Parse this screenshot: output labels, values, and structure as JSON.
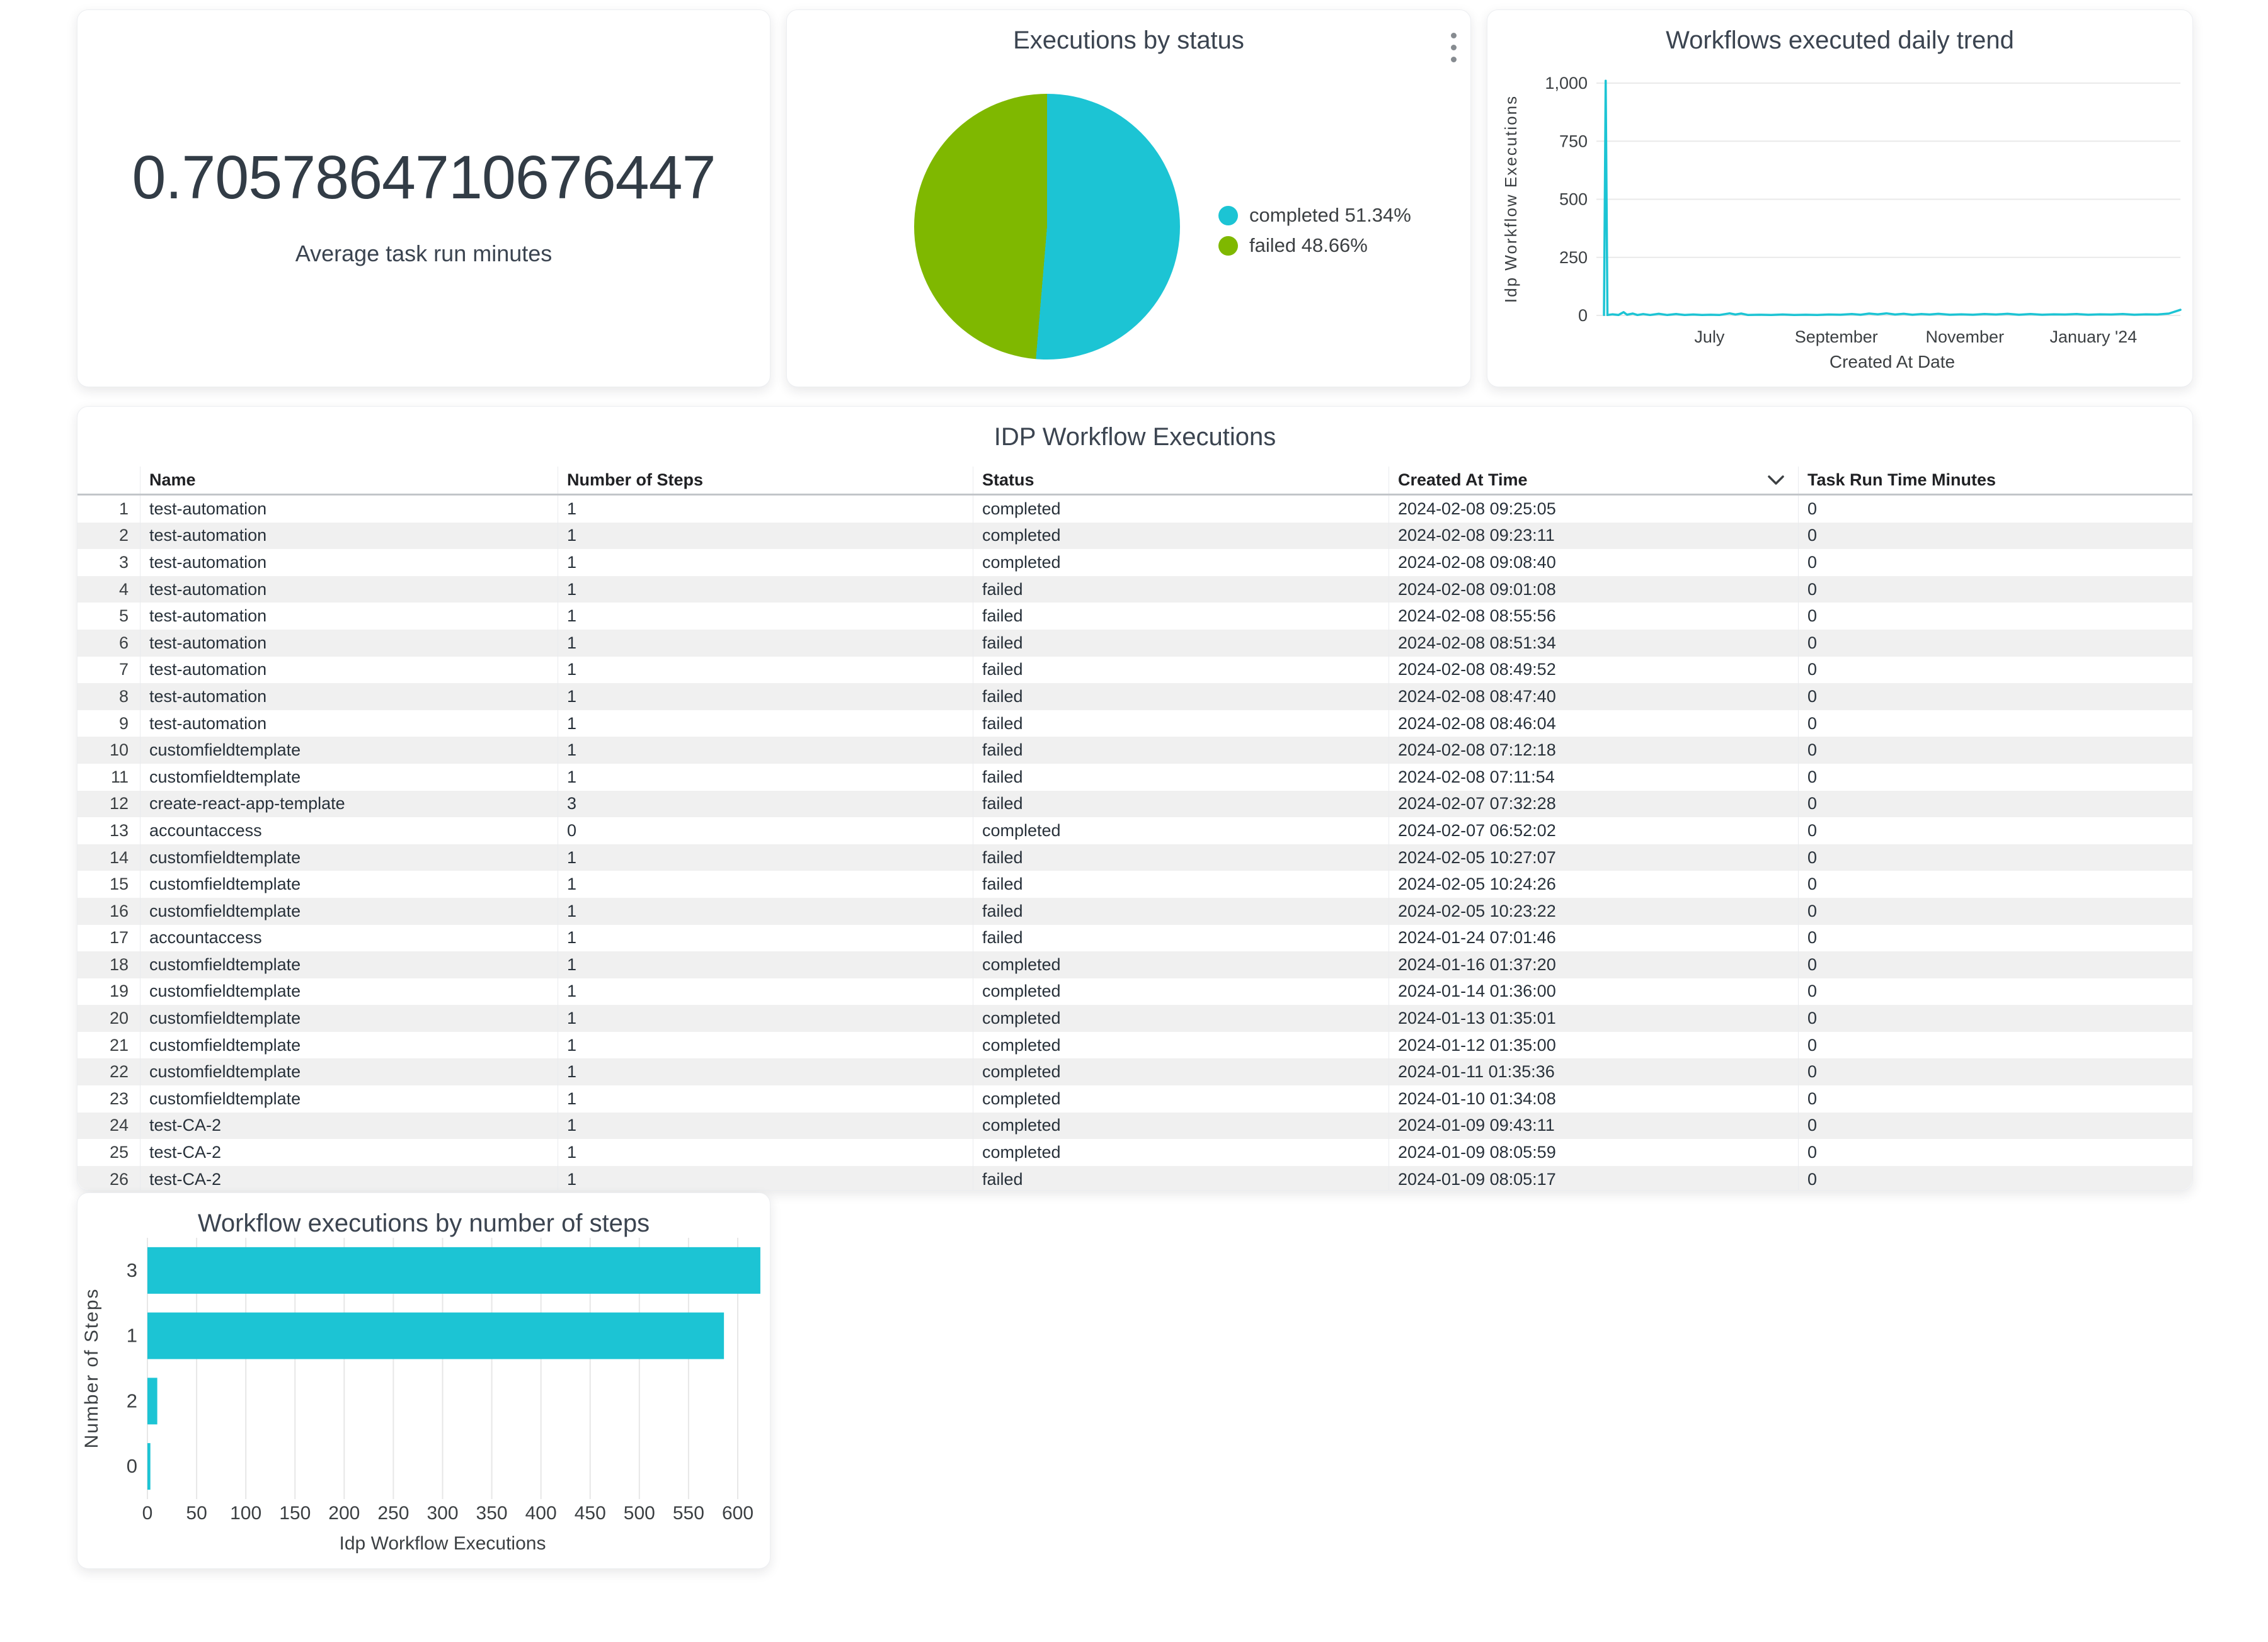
{
  "colors": {
    "accent_cyan": "#1CC4D4",
    "accent_green": "#7FB800",
    "text_dark": "#3b4450",
    "grid": "#e9e9e9",
    "row_stripe": "#f0f0f0"
  },
  "scorecard": {
    "value": "0.7057864710676447",
    "label": "Average task run minutes"
  },
  "pie_legend_note": "legend right of pie",
  "icons": {
    "kebab_menu": "more-options",
    "sort_indicator": "chevron-down"
  },
  "chart_data": [
    {
      "type": "pie",
      "title": "Executions by status",
      "slices": [
        {
          "label": "completed",
          "pct": 51.34,
          "color": "#1CC4D4"
        },
        {
          "label": "failed",
          "pct": 48.66,
          "color": "#7FB800"
        }
      ],
      "legend_position": "right"
    },
    {
      "type": "line",
      "title": "Workflows executed daily trend",
      "xlabel": "Created At Date",
      "ylabel": "Idp Workflow Executions",
      "color": "#1CC4D4",
      "ylim": [
        0,
        1065
      ],
      "yticks": [
        {
          "v": 0,
          "label": "0"
        },
        {
          "v": 250,
          "label": "250"
        },
        {
          "v": 500,
          "label": "500"
        },
        {
          "v": 750,
          "label": "750"
        },
        {
          "v": 1000,
          "label": "1,000"
        }
      ],
      "xticks": [
        {
          "f": 0.183,
          "label": "July"
        },
        {
          "f": 0.403,
          "label": "September"
        },
        {
          "f": 0.626,
          "label": "November"
        },
        {
          "f": 0.849,
          "label": "January '24"
        }
      ],
      "points": [
        [
          0.0,
          2
        ],
        [
          0.003,
          1010
        ],
        [
          0.006,
          2
        ],
        [
          0.015,
          5
        ],
        [
          0.025,
          2
        ],
        [
          0.034,
          14
        ],
        [
          0.04,
          3
        ],
        [
          0.05,
          8
        ],
        [
          0.058,
          2
        ],
        [
          0.068,
          6
        ],
        [
          0.08,
          2
        ],
        [
          0.095,
          7
        ],
        [
          0.11,
          2
        ],
        [
          0.125,
          6
        ],
        [
          0.14,
          2
        ],
        [
          0.155,
          4
        ],
        [
          0.17,
          2
        ],
        [
          0.185,
          3
        ],
        [
          0.2,
          2
        ],
        [
          0.218,
          9
        ],
        [
          0.228,
          4
        ],
        [
          0.238,
          8
        ],
        [
          0.25,
          2
        ],
        [
          0.27,
          3
        ],
        [
          0.29,
          2
        ],
        [
          0.31,
          4
        ],
        [
          0.33,
          2
        ],
        [
          0.35,
          3
        ],
        [
          0.37,
          2
        ],
        [
          0.39,
          4
        ],
        [
          0.41,
          3
        ],
        [
          0.43,
          6
        ],
        [
          0.445,
          3
        ],
        [
          0.46,
          8
        ],
        [
          0.475,
          5
        ],
        [
          0.49,
          9
        ],
        [
          0.505,
          4
        ],
        [
          0.52,
          7
        ],
        [
          0.535,
          3
        ],
        [
          0.55,
          6
        ],
        [
          0.565,
          4
        ],
        [
          0.58,
          7
        ],
        [
          0.6,
          3
        ],
        [
          0.62,
          5
        ],
        [
          0.64,
          3
        ],
        [
          0.66,
          6
        ],
        [
          0.68,
          4
        ],
        [
          0.7,
          7
        ],
        [
          0.72,
          3
        ],
        [
          0.74,
          6
        ],
        [
          0.76,
          3
        ],
        [
          0.78,
          5
        ],
        [
          0.8,
          4
        ],
        [
          0.82,
          6
        ],
        [
          0.84,
          3
        ],
        [
          0.86,
          5
        ],
        [
          0.88,
          4
        ],
        [
          0.9,
          6
        ],
        [
          0.92,
          3
        ],
        [
          0.94,
          5
        ],
        [
          0.96,
          4
        ],
        [
          0.98,
          8
        ],
        [
          0.995,
          20
        ],
        [
          1.0,
          24
        ]
      ]
    },
    {
      "type": "bar",
      "orientation": "horizontal",
      "title": "Workflow executions by number of steps",
      "xlabel": "Idp Workflow Executions",
      "ylabel": "Number of Steps",
      "color": "#1CC4D4",
      "categories": [
        "3",
        "1",
        "2",
        "0"
      ],
      "values": [
        623,
        586,
        10,
        3
      ],
      "xticks": [
        0,
        50,
        100,
        150,
        200,
        250,
        300,
        350,
        400,
        450,
        500,
        550,
        600
      ],
      "xlim": [
        0,
        630
      ],
      "grid": true
    }
  ],
  "table": {
    "title": "IDP Workflow Executions",
    "columns": [
      "Name",
      "Number of Steps",
      "Status",
      "Created At Time",
      "Task Run Time Minutes"
    ],
    "sorted_column": "Created At Time",
    "sort_direction": "desc",
    "rows": [
      [
        "1",
        "test-automation",
        "1",
        "completed",
        "2024-02-08 09:25:05",
        "0"
      ],
      [
        "2",
        "test-automation",
        "1",
        "completed",
        "2024-02-08 09:23:11",
        "0"
      ],
      [
        "3",
        "test-automation",
        "1",
        "completed",
        "2024-02-08 09:08:40",
        "0"
      ],
      [
        "4",
        "test-automation",
        "1",
        "failed",
        "2024-02-08 09:01:08",
        "0"
      ],
      [
        "5",
        "test-automation",
        "1",
        "failed",
        "2024-02-08 08:55:56",
        "0"
      ],
      [
        "6",
        "test-automation",
        "1",
        "failed",
        "2024-02-08 08:51:34",
        "0"
      ],
      [
        "7",
        "test-automation",
        "1",
        "failed",
        "2024-02-08 08:49:52",
        "0"
      ],
      [
        "8",
        "test-automation",
        "1",
        "failed",
        "2024-02-08 08:47:40",
        "0"
      ],
      [
        "9",
        "test-automation",
        "1",
        "failed",
        "2024-02-08 08:46:04",
        "0"
      ],
      [
        "10",
        "customfieldtemplate",
        "1",
        "failed",
        "2024-02-08 07:12:18",
        "0"
      ],
      [
        "11",
        "customfieldtemplate",
        "1",
        "failed",
        "2024-02-08 07:11:54",
        "0"
      ],
      [
        "12",
        "create-react-app-template",
        "3",
        "failed",
        "2024-02-07 07:32:28",
        "0"
      ],
      [
        "13",
        "accountaccess",
        "0",
        "completed",
        "2024-02-07 06:52:02",
        "0"
      ],
      [
        "14",
        "customfieldtemplate",
        "1",
        "failed",
        "2024-02-05 10:27:07",
        "0"
      ],
      [
        "15",
        "customfieldtemplate",
        "1",
        "failed",
        "2024-02-05 10:24:26",
        "0"
      ],
      [
        "16",
        "customfieldtemplate",
        "1",
        "failed",
        "2024-02-05 10:23:22",
        "0"
      ],
      [
        "17",
        "accountaccess",
        "1",
        "failed",
        "2024-01-24 07:01:46",
        "0"
      ],
      [
        "18",
        "customfieldtemplate",
        "1",
        "completed",
        "2024-01-16 01:37:20",
        "0"
      ],
      [
        "19",
        "customfieldtemplate",
        "1",
        "completed",
        "2024-01-14 01:36:00",
        "0"
      ],
      [
        "20",
        "customfieldtemplate",
        "1",
        "completed",
        "2024-01-13 01:35:01",
        "0"
      ],
      [
        "21",
        "customfieldtemplate",
        "1",
        "completed",
        "2024-01-12 01:35:00",
        "0"
      ],
      [
        "22",
        "customfieldtemplate",
        "1",
        "completed",
        "2024-01-11 01:35:36",
        "0"
      ],
      [
        "23",
        "customfieldtemplate",
        "1",
        "completed",
        "2024-01-10 01:34:08",
        "0"
      ],
      [
        "24",
        "test-CA-2",
        "1",
        "completed",
        "2024-01-09 09:43:11",
        "0"
      ],
      [
        "25",
        "test-CA-2",
        "1",
        "completed",
        "2024-01-09 08:05:59",
        "0"
      ],
      [
        "26",
        "test-CA-2",
        "1",
        "failed",
        "2024-01-09 08:05:17",
        "0"
      ]
    ]
  }
}
